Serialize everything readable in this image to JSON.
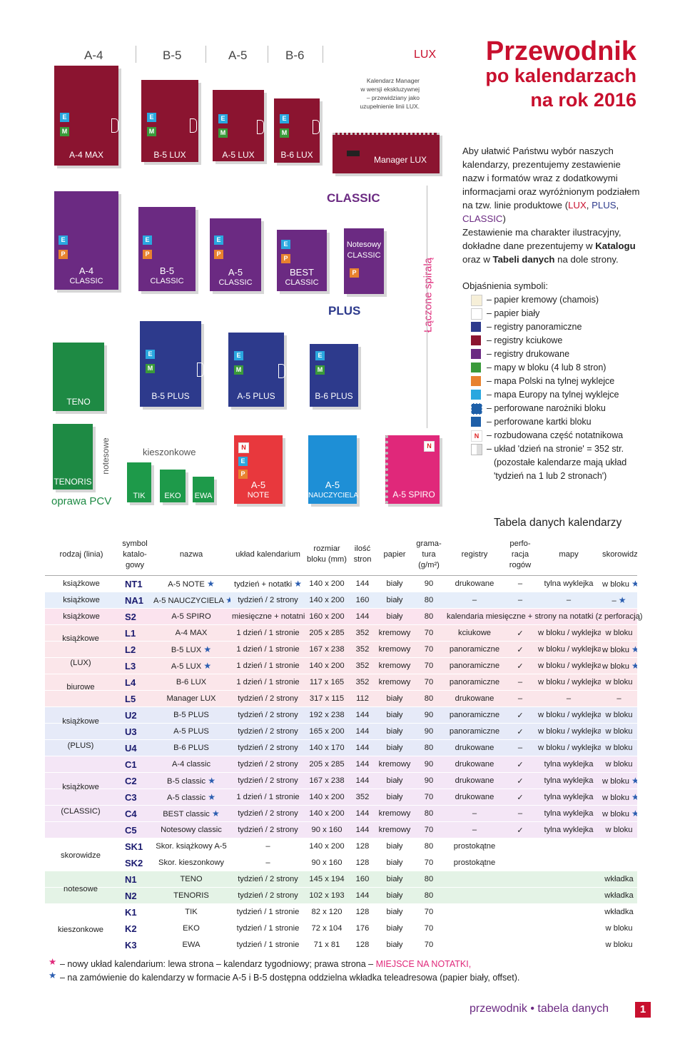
{
  "header": {
    "formats": [
      "A-4",
      "B-5",
      "A-5",
      "B-6"
    ],
    "lux": "LUX",
    "title1": "Przewodnik",
    "title2": "po kalendarzach",
    "title3": "na rok 2016",
    "manager_note_1": "Kalendarz Manager",
    "manager_note_2": "w wersji ekskluzywnej",
    "manager_note_3": "– przewidziany jako",
    "manager_note_4": "uzupełnienie linii LUX."
  },
  "books": {
    "a4max": "A-4 MAX",
    "b5lux": "B-5 LUX",
    "a5lux": "A-5 LUX",
    "b6lux": "B-6 LUX",
    "manager_lux": "Manager LUX",
    "classic_line": "CLASSIC",
    "a4c_1": "A-4",
    "a4c_2": "CLASSIC",
    "b5c_1": "B-5",
    "b5c_2": "CLASSIC",
    "a5c_1": "A-5",
    "a5c_2": "CLASSIC",
    "best_1": "BEST",
    "best_2": "CLASSIC",
    "notes_1": "Notesowy",
    "notes_2": "CLASSIC",
    "plus_line": "PLUS",
    "spiral": "Łączone spiralą",
    "teno": "TENO",
    "b5plus": "B-5 PLUS",
    "a5plus": "A-5 PLUS",
    "b6plus": "B-6 PLUS",
    "notesowe": "notesowe",
    "kieszonkowe": "kieszonkowe",
    "tenoris": "TENORIS",
    "oprawa": "oprawa PCV",
    "tik": "TIK",
    "eko": "EKO",
    "ewa": "EWA",
    "a5note_1": "A-5",
    "a5note_2": "NOTE",
    "a5n_1": "A-5",
    "a5n_2": "NAUCZYCIELA",
    "a5spiro": "A-5 SPIRO",
    "badge_e": "E",
    "badge_m": "M",
    "badge_p": "P",
    "badge_n": "N"
  },
  "intro": {
    "p1_a": "Aby ułatwić Państwu wybór naszych kalendarzy, prezentujemy zestawienie nazw i formatów wraz z dodatkowymi informacjami oraz wyróżnionym podziałem na tzw. linie produktowe",
    "p1_lux": "LUX",
    "p1_plus": "PLUS",
    "p1_classic": "CLASSIC",
    "p2_a": "Zestawienie ma charakter ilustracyjny, dokładne dane prezentujemy w",
    "p2_b": "Katalogu",
    "p2_c": "oraz w",
    "p2_d": "Tabeli danych",
    "p2_e": "na dole strony."
  },
  "legend": {
    "title": "Objaśnienia symboli:",
    "items": [
      "– papier kremowy (chamois)",
      "– papier biały",
      "– registry panoramiczne",
      "– registry kciukowe",
      "– registry drukowane",
      "– mapy w bloku (4 lub 8 stron)",
      "– mapa Polski na tylnej wyklejce",
      "– mapa Europy na tylnej wyklejce",
      "– perforowane narożniki bloku",
      "– perforowane kartki bloku",
      "– rozbudowana część notatnikowa",
      "– układ 'dzień na stronie' = 352 str."
    ],
    "note1": "(pozostałe kalendarze mają układ",
    "note2": "'tydzień na 1 lub 2 stronach')"
  },
  "table": {
    "title": "Tabela danych kalendarzy",
    "headers": [
      "rodzaj (linia)",
      "symbol katalo- gowy",
      "nazwa",
      "układ kalendarium",
      "rozmiar bloku (mm)",
      "ilość stron",
      "papier",
      "grama- tura (g/m²)",
      "registry",
      "perfo- racja rogów",
      "mapy",
      "skorowidz"
    ],
    "rows": [
      [
        "książkowe",
        "NT1",
        "A-5 NOTE ★",
        "tydzień + notatki ★",
        "140 x 200",
        "144",
        "biały",
        "90",
        "drukowane",
        "–",
        "tylna wyklejka",
        "w bloku ★"
      ],
      [
        "książkowe",
        "NA1",
        "A-5 NAUCZYCIELA ★",
        "tydzień / 2 strony",
        "140 x 200",
        "160",
        "biały",
        "80",
        "–",
        "–",
        "–",
        "– ★"
      ],
      [
        "książkowe",
        "S2",
        "A-5 SPIRO",
        "miesięczne + notatnik",
        "160 x 200",
        "144",
        "biały",
        "80",
        "kalendaria miesięczne + strony na notatki (z perforacją)",
        "",
        "",
        ""
      ],
      [
        "",
        "L1",
        "A-4 MAX",
        "1 dzień / 1 stronie",
        "205 x 285",
        "352",
        "kremowy",
        "70",
        "kciukowe",
        "✓",
        "w bloku / wyklejka",
        "w bloku"
      ],
      [
        "",
        "L2",
        "B-5 LUX ★",
        "1 dzień / 1 stronie",
        "167 x 238",
        "352",
        "kremowy",
        "70",
        "panoramiczne",
        "✓",
        "w bloku / wyklejka",
        "w bloku ★"
      ],
      [
        "",
        "L3",
        "A-5 LUX ★",
        "1 dzień / 1 stronie",
        "140 x 200",
        "352",
        "kremowy",
        "70",
        "panoramiczne",
        "✓",
        "w bloku / wyklejka",
        "w bloku ★"
      ],
      [
        "",
        "L4",
        "B-6 LUX",
        "1 dzień / 1 stronie",
        "117 x 165",
        "352",
        "kremowy",
        "70",
        "panoramiczne",
        "–",
        "w bloku / wyklejka",
        "w bloku"
      ],
      [
        "",
        "L5",
        "Manager LUX",
        "tydzień / 2 strony",
        "317 x 115",
        "112",
        "biały",
        "80",
        "drukowane",
        "–",
        "–",
        "–"
      ],
      [
        "",
        "U2",
        "B-5 PLUS",
        "tydzień / 2 strony",
        "192 x 238",
        "144",
        "biały",
        "90",
        "panoramiczne",
        "✓",
        "w bloku / wyklejka",
        "w bloku"
      ],
      [
        "",
        "U3",
        "A-5 PLUS",
        "tydzień / 2 strony",
        "165 x 200",
        "144",
        "biały",
        "90",
        "panoramiczne",
        "✓",
        "w bloku / wyklejka",
        "w bloku"
      ],
      [
        "",
        "U4",
        "B-6 PLUS",
        "tydzień / 2 strony",
        "140 x 170",
        "144",
        "biały",
        "80",
        "drukowane",
        "–",
        "w bloku / wyklejka",
        "w bloku"
      ],
      [
        "",
        "C1",
        "A-4 classic",
        "tydzień / 2 strony",
        "205 x 285",
        "144",
        "kremowy",
        "90",
        "drukowane",
        "✓",
        "tylna wyklejka",
        "w bloku"
      ],
      [
        "",
        "C2",
        "B-5 classic ★",
        "tydzień / 2 strony",
        "167 x 238",
        "144",
        "biały",
        "90",
        "drukowane",
        "✓",
        "tylna wyklejka",
        "w bloku ★"
      ],
      [
        "",
        "C3",
        "A-5 classic ★",
        "1 dzień / 1 stronie",
        "140 x 200",
        "352",
        "biały",
        "70",
        "drukowane",
        "✓",
        "tylna wyklejka",
        "w bloku ★"
      ],
      [
        "",
        "C4",
        "BEST classic ★",
        "tydzień / 2 strony",
        "140 x 200",
        "144",
        "kremowy",
        "80",
        "–",
        "–",
        "tylna wyklejka",
        "w bloku ★"
      ],
      [
        "",
        "C5",
        "Notesowy classic",
        "tydzień / 2 strony",
        "90 x 160",
        "144",
        "kremowy",
        "70",
        "–",
        "✓",
        "tylna wyklejka",
        "w bloku"
      ],
      [
        "",
        "SK1",
        "Skor. książkowy A-5",
        "–",
        "140 x 200",
        "128",
        "biały",
        "80",
        "prostokątne",
        "",
        "",
        ""
      ],
      [
        "",
        "SK2",
        "Skor. kieszonkowy",
        "–",
        "90 x 160",
        "128",
        "biały",
        "70",
        "prostokątne",
        "",
        "",
        ""
      ],
      [
        "",
        "N1",
        "TENO",
        "tydzień / 2 strony",
        "145 x 194",
        "160",
        "biały",
        "80",
        "",
        "",
        "",
        "wkładka"
      ],
      [
        "",
        "N2",
        "TENORIS",
        "tydzień / 2 strony",
        "102 x 193",
        "144",
        "biały",
        "80",
        "",
        "",
        "",
        "wkładka"
      ],
      [
        "",
        "K1",
        "TIK",
        "tydzień / 1 stronie",
        "82 x 120",
        "128",
        "biały",
        "70",
        "",
        "",
        "",
        "wkładka"
      ],
      [
        "",
        "K2",
        "EKO",
        "tydzień / 1 stronie",
        "72 x 104",
        "176",
        "biały",
        "70",
        "",
        "",
        "",
        "w bloku"
      ],
      [
        "",
        "K3",
        "EWA",
        "tydzień / 1 stronie",
        "71 x 81",
        "128",
        "biały",
        "70",
        "",
        "",
        "",
        "w bloku"
      ]
    ],
    "groups": {
      "lux_1": "książkowe",
      "lux_2": "(LUX)",
      "lux_3": "biurowe",
      "plus_1": "książkowe",
      "plus_2": "(PLUS)",
      "classic_1": "książkowe",
      "classic_2": "(CLASSIC)",
      "skorowidze": "skorowidze",
      "notesowe": "notesowe",
      "kieszonkowe": "kieszonkowe"
    }
  },
  "footnotes": {
    "f1_a": "– nowy układ kalendarium: lewa strona – kalendarz tygodniowy; prawa strona –",
    "f1_b": "MIEJSCE NA NOTATKI,",
    "f2": "– na zamówienie do kalendarzy w formacie A-5 i B-5 dostępna oddzielna wkładka teleadresowa (papier biały, offset)."
  },
  "footer": {
    "text": "przewodnik • tabela danych",
    "page": "1"
  },
  "colors": {
    "lux": "#8b1430",
    "classic": "#6b2a82",
    "plus": "#2d3a8c",
    "notesowe": "#1e8a44",
    "kieszonkowe": "#1e9a4a",
    "note": "#e8383d",
    "nauczyciela": "#1e8fd6",
    "spiro": "#e0287a",
    "title_red": "#c8102e"
  }
}
